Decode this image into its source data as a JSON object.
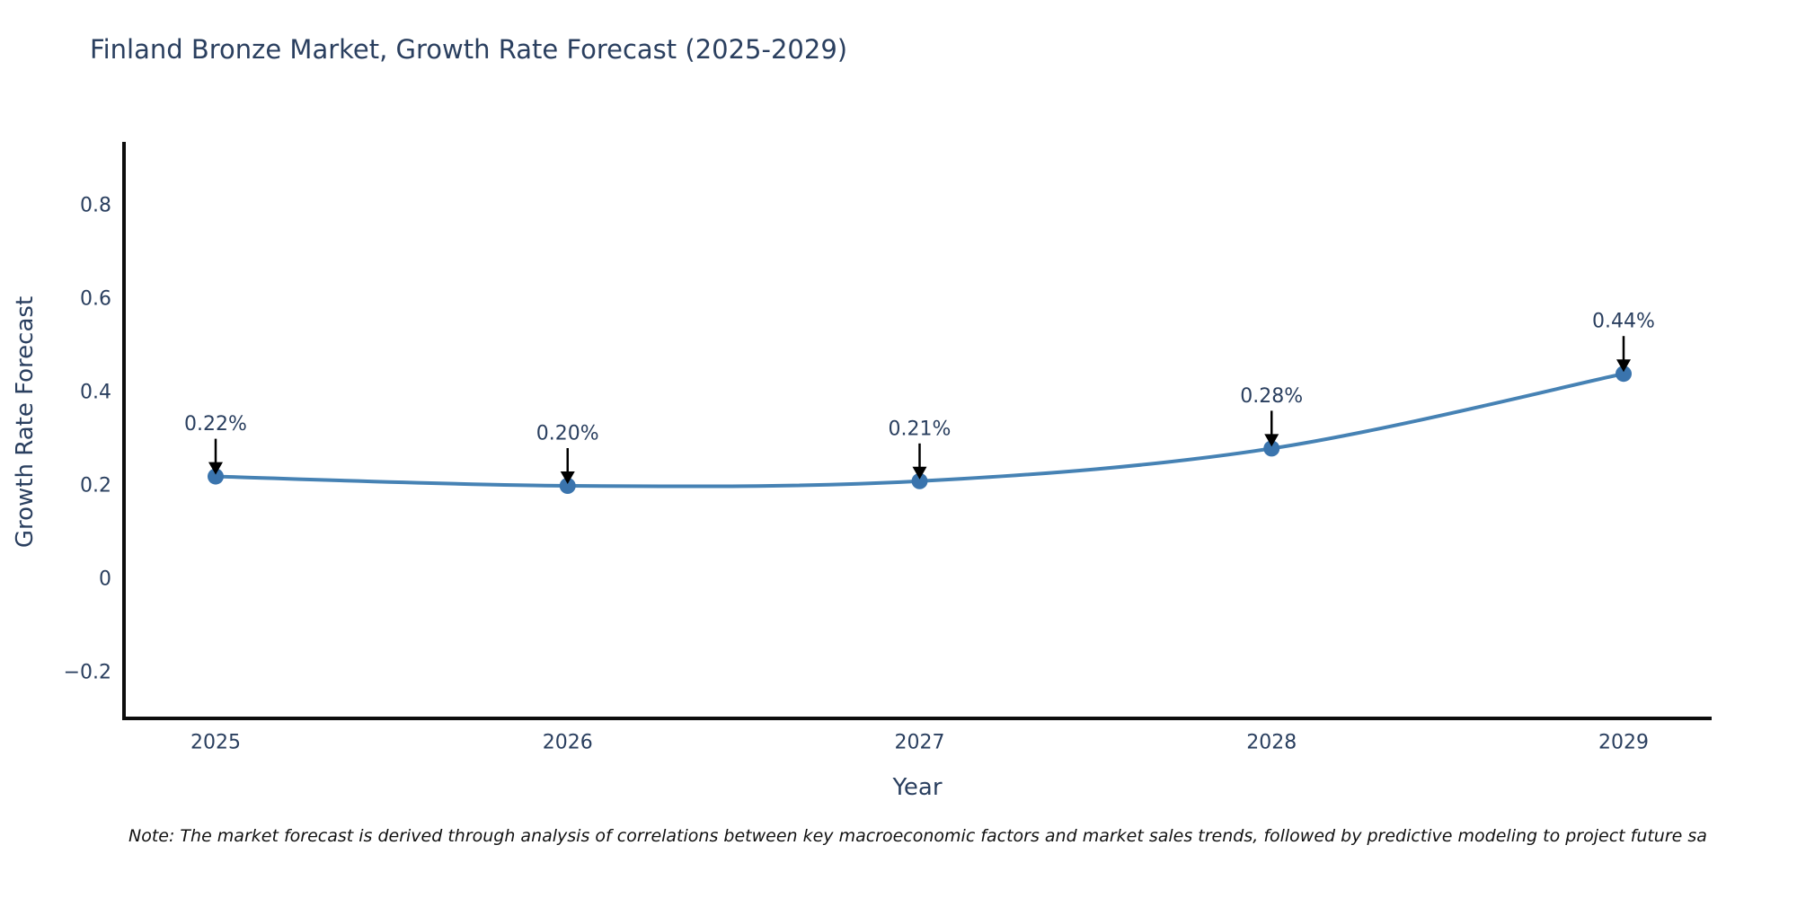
{
  "title": {
    "text": "Finland Bronze Market, Growth Rate Forecast (2025-2029)",
    "color": "#2a3f5f"
  },
  "note": {
    "text": "Note: The market forecast is derived through analysis of correlations between key macroeconomic factors and market sales trends, followed by predictive modeling to project future sa"
  },
  "chart_data": {
    "type": "line",
    "title": "Finland Bronze Market, Growth Rate Forecast (2025-2029)",
    "xlabel": "Year",
    "ylabel": "Growth Rate Forecast",
    "categories": [
      "2025",
      "2026",
      "2027",
      "2028",
      "2029"
    ],
    "x": [
      2025,
      2026,
      2027,
      2028,
      2029
    ],
    "values": [
      0.22,
      0.2,
      0.21,
      0.28,
      0.44
    ],
    "point_labels": [
      "0.22%",
      "0.20%",
      "0.21%",
      "0.28%",
      "0.44%"
    ],
    "yticks": [
      -0.2,
      0,
      0.2,
      0.4,
      0.6,
      0.8
    ],
    "ytick_labels": [
      "−0.2",
      "0",
      "0.2",
      "0.4",
      "0.6",
      "0.8"
    ],
    "ylim": [
      -0.3,
      0.94
    ],
    "grid": false,
    "legend_position": "none",
    "line_color": "#4682b4",
    "marker_color": "#3a74ad",
    "annotation_arrow_color": "#000000",
    "axis_color": "#0d0d0d",
    "text_color": "#2a3f5f"
  }
}
